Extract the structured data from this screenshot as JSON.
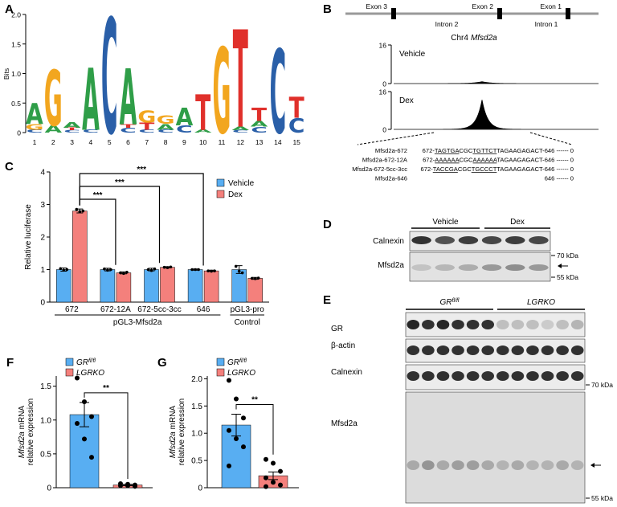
{
  "panels": {
    "A": {
      "label": "A",
      "ylabel": "Bits",
      "ylim": [
        0,
        2
      ],
      "yticks": [
        0,
        0.5,
        {
          "value": 1,
          "label": "1.0"
        },
        1.5,
        {
          "value": 2,
          "label": "2.0"
        }
      ],
      "positions": [
        1,
        2,
        3,
        4,
        5,
        6,
        7,
        8,
        9,
        10,
        11,
        12,
        13,
        14,
        15
      ],
      "colors": {
        "A": "#2f9e48",
        "C": "#2a5fa8",
        "G": "#f2a61f",
        "T": "#e0302b"
      },
      "stacks": [
        [
          {
            "letter": "C",
            "height": 0.05
          },
          {
            "letter": "G",
            "height": 0.1
          },
          {
            "letter": "A",
            "height": 0.35
          }
        ],
        [
          {
            "letter": "A",
            "height": 0.12
          },
          {
            "letter": "G",
            "height": 0.95
          }
        ],
        [
          {
            "letter": "C",
            "height": 0.04
          },
          {
            "letter": "T",
            "height": 0.04
          },
          {
            "letter": "A",
            "height": 0.1
          }
        ],
        [
          {
            "letter": "C",
            "height": 0.05
          },
          {
            "letter": "A",
            "height": 1.05
          }
        ],
        [
          {
            "letter": "C",
            "height": 1.95
          }
        ],
        [
          {
            "letter": "C",
            "height": 0.08
          },
          {
            "letter": "T",
            "height": 0.06
          },
          {
            "letter": "A",
            "height": 0.95
          }
        ],
        [
          {
            "letter": "C",
            "height": 0.05
          },
          {
            "letter": "T",
            "height": 0.12
          },
          {
            "letter": "G",
            "height": 0.2
          }
        ],
        [
          {
            "letter": "C",
            "height": 0.05
          },
          {
            "letter": "A",
            "height": 0.1
          },
          {
            "letter": "G",
            "height": 0.14
          }
        ],
        [
          {
            "letter": "C",
            "height": 0.12
          },
          {
            "letter": "A",
            "height": 0.3
          }
        ],
        [
          {
            "letter": "A",
            "height": 0.05
          },
          {
            "letter": "T",
            "height": 0.6
          }
        ],
        [
          {
            "letter": "G",
            "height": 1.45
          }
        ],
        [
          {
            "letter": "C",
            "height": 0.04
          },
          {
            "letter": "A",
            "height": 0.06
          },
          {
            "letter": "T",
            "height": 1.65
          }
        ],
        [
          {
            "letter": "C",
            "height": 0.1
          },
          {
            "letter": "A",
            "height": 0.1
          },
          {
            "letter": "T",
            "height": 0.22
          }
        ],
        [
          {
            "letter": "C",
            "height": 1.42
          }
        ],
        [
          {
            "letter": "C",
            "height": 0.25
          },
          {
            "letter": "T",
            "height": 0.35
          }
        ]
      ]
    },
    "B": {
      "label": "B",
      "exons": [
        "Exon 3",
        "Exon 2",
        "Exon 1"
      ],
      "introns": [
        "Intron 2",
        "Intron 1"
      ],
      "locus": "Chr4",
      "gene": "Mfsd2a",
      "ylim": [
        0,
        16
      ],
      "yticks": [
        0,
        16
      ],
      "tracks": [
        {
          "name": "Vehicle",
          "peak": 0.8
        },
        {
          "name": "Dex",
          "peak": 12.5
        }
      ],
      "sequences": [
        {
          "name": "Mfsd2a-672",
          "parts": [
            {
              "text": "672-"
            },
            {
              "text": "TAGTGA",
              "underlined": true
            },
            {
              "text": "CGC"
            },
            {
              "text": "TGTTCT",
              "underlined": true
            },
            {
              "text": "TAGAAGAGACT-646 ------ 0"
            }
          ]
        },
        {
          "name": "Mfsd2a-672-12A",
          "parts": [
            {
              "text": "672-"
            },
            {
              "text": "AAAAAA",
              "underlined": true
            },
            {
              "text": "CGC"
            },
            {
              "text": "AAAAAA",
              "underlined": true
            },
            {
              "text": "TAGAAGAGACT-646 ------ 0"
            }
          ]
        },
        {
          "name": "Mfsd2a-672-5cc-3cc",
          "parts": [
            {
              "text": "672-"
            },
            {
              "text": "TACCGA",
              "underlined": true
            },
            {
              "text": "CGC"
            },
            {
              "text": "TGCCCT",
              "underlined": true
            },
            {
              "text": "TAGAAGAGACT-646 ------ 0"
            }
          ]
        },
        {
          "name": "Mfsd2a-646",
          "parts": [
            {
              "text": "646 ------ 0"
            }
          ]
        }
      ]
    },
    "C": {
      "label": "C",
      "ylabel": "Relative luciferase",
      "ylim": [
        0,
        4
      ],
      "yticks": [
        0,
        1,
        2,
        3,
        4
      ],
      "groups": [
        {
          "label": "pGL3-Mfsd2a",
          "categories": [
            "672",
            "672-12A",
            "672-5cc-3cc",
            "646"
          ]
        },
        {
          "label": "Control",
          "categories": [
            "pGL3-pro"
          ]
        }
      ],
      "series": [
        {
          "name": "Vehicle",
          "color": "#58aef2",
          "values": [
            1,
            1,
            1,
            1,
            1
          ],
          "errors": [
            0.05,
            0.04,
            0.04,
            0.02,
            0.12
          ],
          "points": [
            [
              1.03,
              0.98,
              1.0
            ],
            [
              1.02,
              0.98,
              1.0
            ],
            [
              1.0,
              0.97,
              1.02
            ],
            [
              1.0,
              1.0,
              1.0
            ],
            [
              1.1,
              0.95,
              0.9
            ]
          ]
        },
        {
          "name": "Dex",
          "color": "#f4807c",
          "values": [
            2.8,
            0.9,
            1.07,
            0.96,
            0.73
          ],
          "errors": [
            0.06,
            0.03,
            0.02,
            0.02,
            0.03
          ],
          "points": [
            [
              2.85,
              2.78,
              2.8
            ],
            [
              0.9,
              0.88,
              0.92
            ],
            [
              1.07,
              1.06,
              1.08
            ],
            [
              0.96,
              0.95,
              0.96
            ],
            [
              0.73,
              0.72,
              0.74
            ]
          ]
        }
      ],
      "significance": [
        null,
        "***",
        "***",
        "***",
        null
      ]
    },
    "D": {
      "label": "D",
      "conditions": [
        "Vehicle",
        "Dex"
      ],
      "rows": [
        "Calnexin",
        "Mfsd2a"
      ],
      "markers": [
        "70 kDa",
        "55 kDa"
      ]
    },
    "E": {
      "label": "E",
      "genotypes": [
        {
          "text": "GR",
          "sup": "fl/fl"
        },
        {
          "text": "LGRKO"
        }
      ],
      "rows": [
        "GR",
        "β-actin",
        "Calnexin",
        "Mfsd2a"
      ],
      "markers": [
        "70 kDa",
        "55 kDa"
      ]
    },
    "F": {
      "label": "F",
      "ylabel": {
        "gene": "Mfsd2a",
        "line1": "mRNA",
        "line2": "relative expression"
      },
      "ylim": [
        0,
        1.65
      ],
      "yticks": [
        0,
        0.5,
        {
          "value": 1,
          "label": "1.0"
        },
        1.5
      ],
      "series": [
        {
          "name": {
            "text": "GR",
            "sup": "fl/fl"
          },
          "color": "#58aef2",
          "value": 1.08,
          "error": 0.18,
          "points": [
            1.62,
            1.27,
            1.05,
            0.95,
            0.72,
            0.45
          ]
        },
        {
          "name": {
            "text": "LGRKO"
          },
          "color": "#f4807c",
          "value": 0.04,
          "error": 0.01,
          "points": [
            0.06,
            0.05,
            0.04,
            0.03,
            0.03,
            0.02
          ]
        }
      ],
      "significance": "**"
    },
    "G": {
      "label": "G",
      "ylabel": {
        "gene": "Mfsd2a",
        "line1": "mRNA",
        "line2": "relative expression"
      },
      "ylim": [
        0,
        2.05
      ],
      "yticks": [
        0,
        0.5,
        {
          "value": 1,
          "label": "1.0"
        },
        1.5,
        {
          "value": 2,
          "label": "2.0"
        }
      ],
      "series": [
        {
          "name": {
            "text": "GR",
            "sup": "fl/fl"
          },
          "color": "#58aef2",
          "value": 1.15,
          "error": 0.2,
          "points": [
            1.97,
            1.63,
            1.28,
            1.05,
            0.9,
            0.75,
            0.4
          ]
        },
        {
          "name": {
            "text": "LGRKO"
          },
          "color": "#f4807c",
          "value": 0.22,
          "error": 0.07,
          "points": [
            0.52,
            0.45,
            0.3,
            0.18,
            0.1,
            0.05,
            0.02
          ]
        }
      ],
      "significance": "**"
    }
  }
}
